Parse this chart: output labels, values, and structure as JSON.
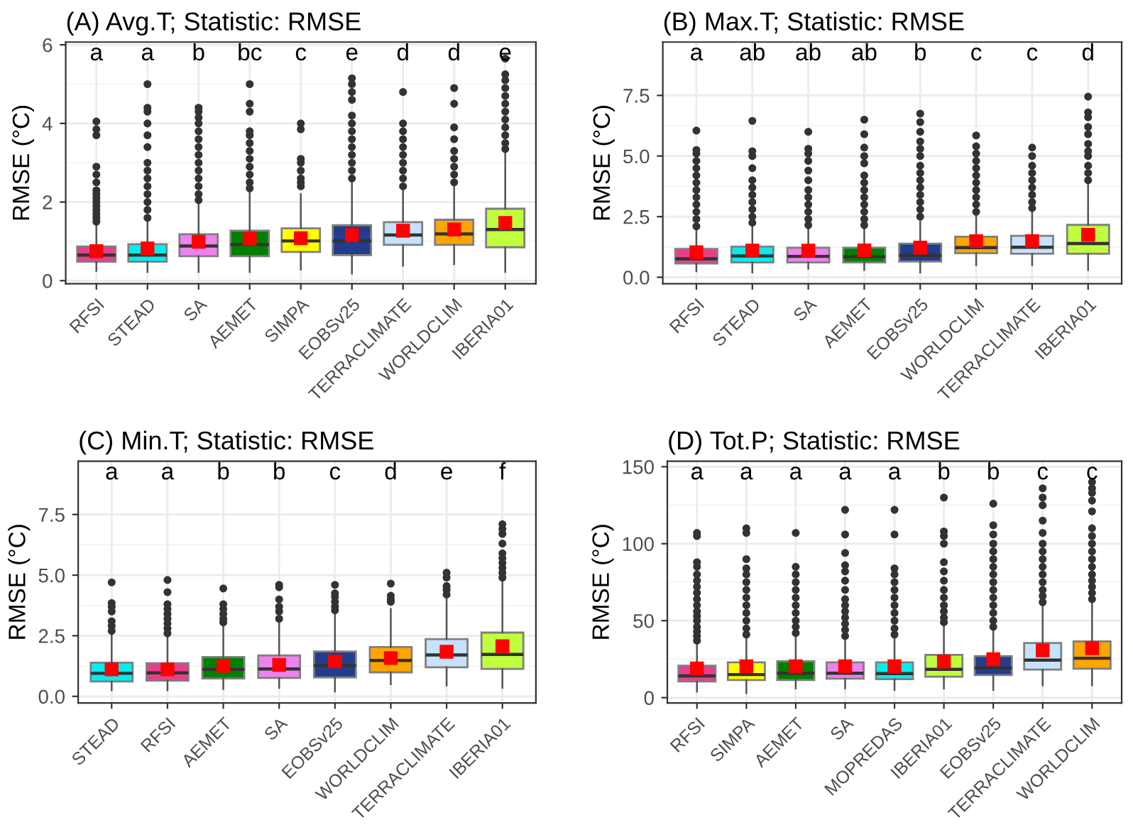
{
  "chart_data": [
    {
      "type": "box",
      "title": "(A) Avg.T; Statistic: RMSE",
      "ylabel": "RMSE (°C)",
      "grid": true,
      "categories": [
        "RFSI",
        "STEAD",
        "SA",
        "AEMET",
        "SIMPA",
        "EOBSv25",
        "TERRACLIMATE",
        "WORLDCLIM",
        "IBERIA01"
      ],
      "colors": [
        "#e83e8c",
        "#00eeee",
        "#ee82ee",
        "#008000",
        "#ffff00",
        "#223d8b",
        "#c6e2ff",
        "#ffa500",
        "#c0ff3e"
      ],
      "ylim": [
        -0.08,
        6.07
      ],
      "yticks": [
        0,
        2,
        4,
        6
      ],
      "boxes": [
        {
          "low": 0.25,
          "q1": 0.48,
          "median": 0.65,
          "q3": 0.87,
          "high": 1.45,
          "mean": 0.75,
          "outliers": [
            1.5,
            1.6,
            1.7,
            1.8,
            1.9,
            2.0,
            2.1,
            2.2,
            2.3,
            2.5,
            2.7,
            2.9,
            3.7,
            3.85,
            4.05
          ]
        },
        {
          "low": 0.22,
          "q1": 0.48,
          "median": 0.65,
          "q3": 0.93,
          "high": 1.55,
          "mean": 0.82,
          "outliers": [
            1.6,
            1.8,
            2.0,
            2.2,
            2.4,
            2.6,
            2.8,
            3.0,
            3.4,
            3.7,
            4.0,
            4.3,
            4.4,
            5.0
          ]
        },
        {
          "low": 0.22,
          "q1": 0.62,
          "median": 0.88,
          "q3": 1.18,
          "high": 2.0,
          "mean": 0.99,
          "outliers": [
            2.05,
            2.2,
            2.4,
            2.6,
            2.8,
            3.0,
            3.2,
            3.4,
            3.6,
            3.8,
            4.0,
            4.15,
            4.3,
            4.4
          ]
        },
        {
          "low": 0.22,
          "q1": 0.62,
          "median": 0.92,
          "q3": 1.27,
          "high": 2.25,
          "mean": 1.07,
          "outliers": [
            2.35,
            2.5,
            2.7,
            2.9,
            3.1,
            3.3,
            3.5,
            3.7,
            3.8,
            4.3,
            4.5,
            5.0
          ]
        },
        {
          "low": 0.28,
          "q1": 0.73,
          "median": 1.01,
          "q3": 1.33,
          "high": 2.2,
          "mean": 1.08,
          "outliers": [
            2.4,
            2.5,
            2.6,
            2.8,
            3.0,
            3.1,
            3.85,
            4.0
          ]
        },
        {
          "low": 0.18,
          "q1": 0.65,
          "median": 1.01,
          "q3": 1.41,
          "high": 2.5,
          "mean": 1.16,
          "outliers": [
            2.6,
            2.8,
            3.0,
            3.2,
            3.4,
            3.6,
            3.8,
            4.0,
            4.2,
            4.6,
            4.8,
            5.0,
            5.15
          ]
        },
        {
          "low": 0.38,
          "q1": 0.91,
          "median": 1.16,
          "q3": 1.49,
          "high": 2.35,
          "mean": 1.27,
          "outliers": [
            2.4,
            2.6,
            2.8,
            3.0,
            3.2,
            3.4,
            3.6,
            3.8,
            4.0,
            4.8
          ]
        },
        {
          "low": 0.42,
          "q1": 0.91,
          "median": 1.19,
          "q3": 1.55,
          "high": 2.45,
          "mean": 1.3,
          "outliers": [
            2.5,
            2.7,
            2.9,
            3.1,
            3.3,
            3.6,
            3.9,
            4.5,
            4.9
          ]
        },
        {
          "low": 0.22,
          "q1": 0.85,
          "median": 1.3,
          "q3": 1.83,
          "high": 3.3,
          "mean": 1.47,
          "outliers": [
            3.35,
            3.5,
            3.7,
            3.9,
            4.1,
            4.3,
            4.5,
            4.7,
            4.9,
            5.1,
            5.25,
            5.65
          ]
        }
      ],
      "annotations": [
        "a",
        "a",
        "b",
        "bc",
        "c",
        "e",
        "d",
        "d",
        "e"
      ]
    },
    {
      "type": "box",
      "title": "(B) Max.T; Statistic: RMSE",
      "ylabel": "RMSE (°C)",
      "grid": true,
      "categories": [
        "RFSI",
        "STEAD",
        "SA",
        "AEMET",
        "EOBSv25",
        "WORLDCLIM",
        "TERRACLIMATE",
        "IBERIA01"
      ],
      "colors": [
        "#e83e8c",
        "#00eeee",
        "#ee82ee",
        "#008000",
        "#223d8b",
        "#ffa500",
        "#c6e2ff",
        "#c0ff3e"
      ],
      "ylim": [
        -0.27,
        9.7
      ],
      "yticks": [
        {
          "value": 0,
          "label": "0.0"
        },
        {
          "value": 2.5,
          "label": "2.5"
        },
        {
          "value": 5,
          "label": "5.0"
        },
        {
          "value": 7.5,
          "label": "7.5"
        }
      ],
      "boxes": [
        {
          "low": 0.25,
          "q1": 0.57,
          "median": 0.76,
          "q3": 1.17,
          "high": 2.05,
          "mean": 1.03,
          "outliers": [
            2.1,
            2.4,
            2.7,
            3.0,
            3.3,
            3.6,
            3.9,
            4.2,
            4.5,
            4.8,
            5.1,
            5.25,
            6.05
          ]
        },
        {
          "low": 0.2,
          "q1": 0.61,
          "median": 0.88,
          "q3": 1.26,
          "high": 2.2,
          "mean": 1.1,
          "outliers": [
            2.25,
            2.5,
            2.8,
            3.1,
            3.4,
            3.7,
            4.0,
            4.5,
            5.0,
            5.2,
            6.45
          ]
        },
        {
          "low": 0.35,
          "q1": 0.61,
          "median": 0.86,
          "q3": 1.22,
          "high": 2.1,
          "mean": 1.1,
          "outliers": [
            2.15,
            2.4,
            2.7,
            3.0,
            3.3,
            3.6,
            4.0,
            4.4,
            4.8,
            5.1,
            5.3,
            6.0
          ]
        },
        {
          "low": 0.3,
          "q1": 0.61,
          "median": 0.85,
          "q3": 1.22,
          "high": 2.1,
          "mean": 1.11,
          "outliers": [
            2.15,
            2.4,
            2.7,
            3.0,
            3.3,
            3.6,
            3.9,
            4.2,
            4.7,
            5.0,
            5.35,
            5.9,
            6.5
          ]
        },
        {
          "low": 0.2,
          "q1": 0.65,
          "median": 0.9,
          "q3": 1.39,
          "high": 2.45,
          "mean": 1.22,
          "outliers": [
            2.5,
            2.8,
            3.1,
            3.4,
            3.7,
            4.0,
            4.3,
            4.6,
            5.0,
            5.3,
            5.6,
            6.0,
            6.4,
            6.75
          ]
        },
        {
          "low": 0.5,
          "q1": 0.99,
          "median": 1.22,
          "q3": 1.67,
          "high": 2.65,
          "mean": 1.49,
          "outliers": [
            2.7,
            3.0,
            3.3,
            3.6,
            3.9,
            4.2,
            4.5,
            4.8,
            5.1,
            5.4,
            5.85
          ]
        },
        {
          "low": 0.5,
          "q1": 0.97,
          "median": 1.24,
          "q3": 1.71,
          "high": 2.8,
          "mean": 1.49,
          "outliers": [
            2.85,
            3.1,
            3.4,
            3.7,
            4.0,
            4.3,
            4.6,
            5.0,
            5.35
          ]
        },
        {
          "low": 0.3,
          "q1": 0.97,
          "median": 1.39,
          "q3": 2.16,
          "high": 3.9,
          "mean": 1.75,
          "outliers": [
            4.0,
            4.3,
            4.6,
            5.0,
            5.2,
            5.5,
            5.9,
            6.2,
            6.6,
            6.8,
            7.45
          ]
        }
      ],
      "annotations": [
        "a",
        "ab",
        "ab",
        "ab",
        "b",
        "c",
        "c",
        "d"
      ]
    },
    {
      "type": "box",
      "title": "(C) Min.T; Statistic: RMSE",
      "ylabel": "RMSE (°C)",
      "grid": true,
      "categories": [
        "STEAD",
        "RFSI",
        "AEMET",
        "SA",
        "EOBSv25",
        "WORLDCLIM",
        "TERRACLIMATE",
        "IBERIA01"
      ],
      "colors": [
        "#00eeee",
        "#e83e8c",
        "#008000",
        "#ee82ee",
        "#223d8b",
        "#ffa500",
        "#c6e2ff",
        "#c0ff3e"
      ],
      "ylim": [
        -0.27,
        9.7
      ],
      "yticks": [
        {
          "value": 0,
          "label": "0.0"
        },
        {
          "value": 2.5,
          "label": "2.5"
        },
        {
          "value": 5,
          "label": "5.0"
        },
        {
          "value": 7.5,
          "label": "7.5"
        }
      ],
      "boxes": [
        {
          "low": 0.25,
          "q1": 0.61,
          "median": 0.95,
          "q3": 1.39,
          "high": 2.6,
          "mean": 1.11,
          "outliers": [
            2.7,
            2.9,
            3.1,
            3.5,
            3.7,
            3.85,
            4.7
          ]
        },
        {
          "low": 0.25,
          "q1": 0.65,
          "median": 0.97,
          "q3": 1.37,
          "high": 2.5,
          "mean": 1.11,
          "outliers": [
            2.6,
            2.8,
            3.0,
            3.2,
            3.4,
            3.6,
            3.8,
            4.3,
            4.8
          ]
        },
        {
          "low": 0.3,
          "q1": 0.74,
          "median": 1.11,
          "q3": 1.62,
          "high": 3.0,
          "mean": 1.26,
          "outliers": [
            3.05,
            3.2,
            3.4,
            3.6,
            3.8,
            4.45
          ]
        },
        {
          "low": 0.35,
          "q1": 0.76,
          "median": 1.13,
          "q3": 1.69,
          "high": 3.1,
          "mean": 1.3,
          "outliers": [
            3.2,
            3.5,
            3.7,
            4.0,
            4.5,
            4.6
          ]
        },
        {
          "low": 0.2,
          "q1": 0.78,
          "median": 1.27,
          "q3": 1.85,
          "high": 3.5,
          "mean": 1.44,
          "outliers": [
            3.55,
            3.7,
            3.9,
            4.1,
            4.25,
            4.6
          ]
        },
        {
          "low": 0.5,
          "q1": 0.99,
          "median": 1.48,
          "q3": 2.03,
          "high": 3.6,
          "mean": 1.58,
          "outliers": [
            3.9,
            4.0,
            4.15,
            4.65
          ]
        },
        {
          "low": 0.45,
          "q1": 1.2,
          "median": 1.71,
          "q3": 2.36,
          "high": 4.15,
          "mean": 1.84,
          "outliers": [
            4.2,
            4.4,
            4.55,
            4.9,
            5.1
          ]
        },
        {
          "low": 0.35,
          "q1": 1.13,
          "median": 1.73,
          "q3": 2.63,
          "high": 4.85,
          "mean": 2.07,
          "outliers": [
            4.9,
            5.1,
            5.3,
            5.5,
            5.7,
            5.9,
            6.3,
            6.7,
            6.9,
            7.1
          ]
        }
      ],
      "annotations": [
        "a",
        "a",
        "b",
        "b",
        "c",
        "d",
        "e",
        "f"
      ]
    },
    {
      "type": "box",
      "title": "(D) Tot.P; Statistic: RMSE",
      "ylabel": "RMSE (°C)",
      "grid": true,
      "categories": [
        "RFSI",
        "SIMPA",
        "AEMET",
        "SA",
        "MOPREDAS",
        "IBERIA01",
        "EOBSv25",
        "TERRACLIMATE",
        "WORLDCLIM"
      ],
      "colors": [
        "#e83e8c",
        "#ffff00",
        "#008000",
        "#ee82ee",
        "#00eeee",
        "#c0ff3e",
        "#223d8b",
        "#c6e2ff",
        "#ffa500"
      ],
      "ylim": [
        -3.4,
        153.6
      ],
      "yticks": [
        0,
        50,
        100,
        150
      ],
      "boxes": [
        {
          "low": 4,
          "q1": 10.5,
          "median": 14.1,
          "q3": 20.7,
          "high": 36,
          "mean": 19.0,
          "outliers": [
            37,
            40,
            43,
            46,
            50,
            53,
            56,
            60,
            64,
            68,
            72,
            76,
            80,
            85,
            88,
            105,
            107
          ]
        },
        {
          "low": 3,
          "q1": 11.4,
          "median": 15.0,
          "q3": 23.0,
          "high": 40,
          "mean": 20.4,
          "outliers": [
            41,
            45,
            50,
            55,
            60,
            65,
            70,
            75,
            80,
            84,
            90,
            107,
            110
          ]
        },
        {
          "low": 6,
          "q1": 11.4,
          "median": 15.9,
          "q3": 23.6,
          "high": 41,
          "mean": 20.4,
          "outliers": [
            42,
            46,
            50,
            55,
            60,
            65,
            70,
            75,
            80,
            85,
            107
          ]
        },
        {
          "low": 6,
          "q1": 12.3,
          "median": 15.9,
          "q3": 23.0,
          "high": 39,
          "mean": 20.4,
          "outliers": [
            40,
            44,
            48,
            52,
            56,
            60,
            64,
            70,
            76,
            82,
            86,
            94,
            106,
            122
          ]
        },
        {
          "low": 5,
          "q1": 12.0,
          "median": 15.6,
          "q3": 23.0,
          "high": 40,
          "mean": 20.4,
          "outliers": [
            41,
            45,
            50,
            55,
            60,
            65,
            70,
            75,
            80,
            84,
            106,
            122
          ]
        },
        {
          "low": 6,
          "q1": 13.6,
          "median": 18.4,
          "q3": 27.8,
          "high": 48,
          "mean": 23.5,
          "outliers": [
            49,
            52,
            56,
            60,
            65,
            70,
            76,
            82,
            88,
            100,
            105,
            108,
            130
          ]
        },
        {
          "low": 5,
          "q1": 14.7,
          "median": 19.3,
          "q3": 27.0,
          "high": 45,
          "mean": 25.0,
          "outliers": [
            46,
            50,
            55,
            60,
            65,
            70,
            75,
            80,
            85,
            90,
            95,
            100,
            106,
            112,
            126
          ]
        },
        {
          "low": 8,
          "q1": 18.2,
          "median": 24.4,
          "q3": 35.5,
          "high": 61,
          "mean": 30.7,
          "outliers": [
            62,
            66,
            70,
            75,
            80,
            85,
            90,
            95,
            100,
            107,
            115,
            125,
            130,
            136
          ]
        },
        {
          "low": 8,
          "q1": 18.8,
          "median": 25.6,
          "q3": 36.6,
          "high": 63,
          "mean": 32.1,
          "outliers": [
            64,
            68,
            72,
            76,
            80,
            85,
            90,
            95,
            100,
            105,
            110,
            121,
            128,
            133,
            136,
            140
          ]
        }
      ],
      "annotations": [
        "a",
        "a",
        "a",
        "a",
        "a",
        "b",
        "b",
        "c",
        "c"
      ]
    }
  ]
}
